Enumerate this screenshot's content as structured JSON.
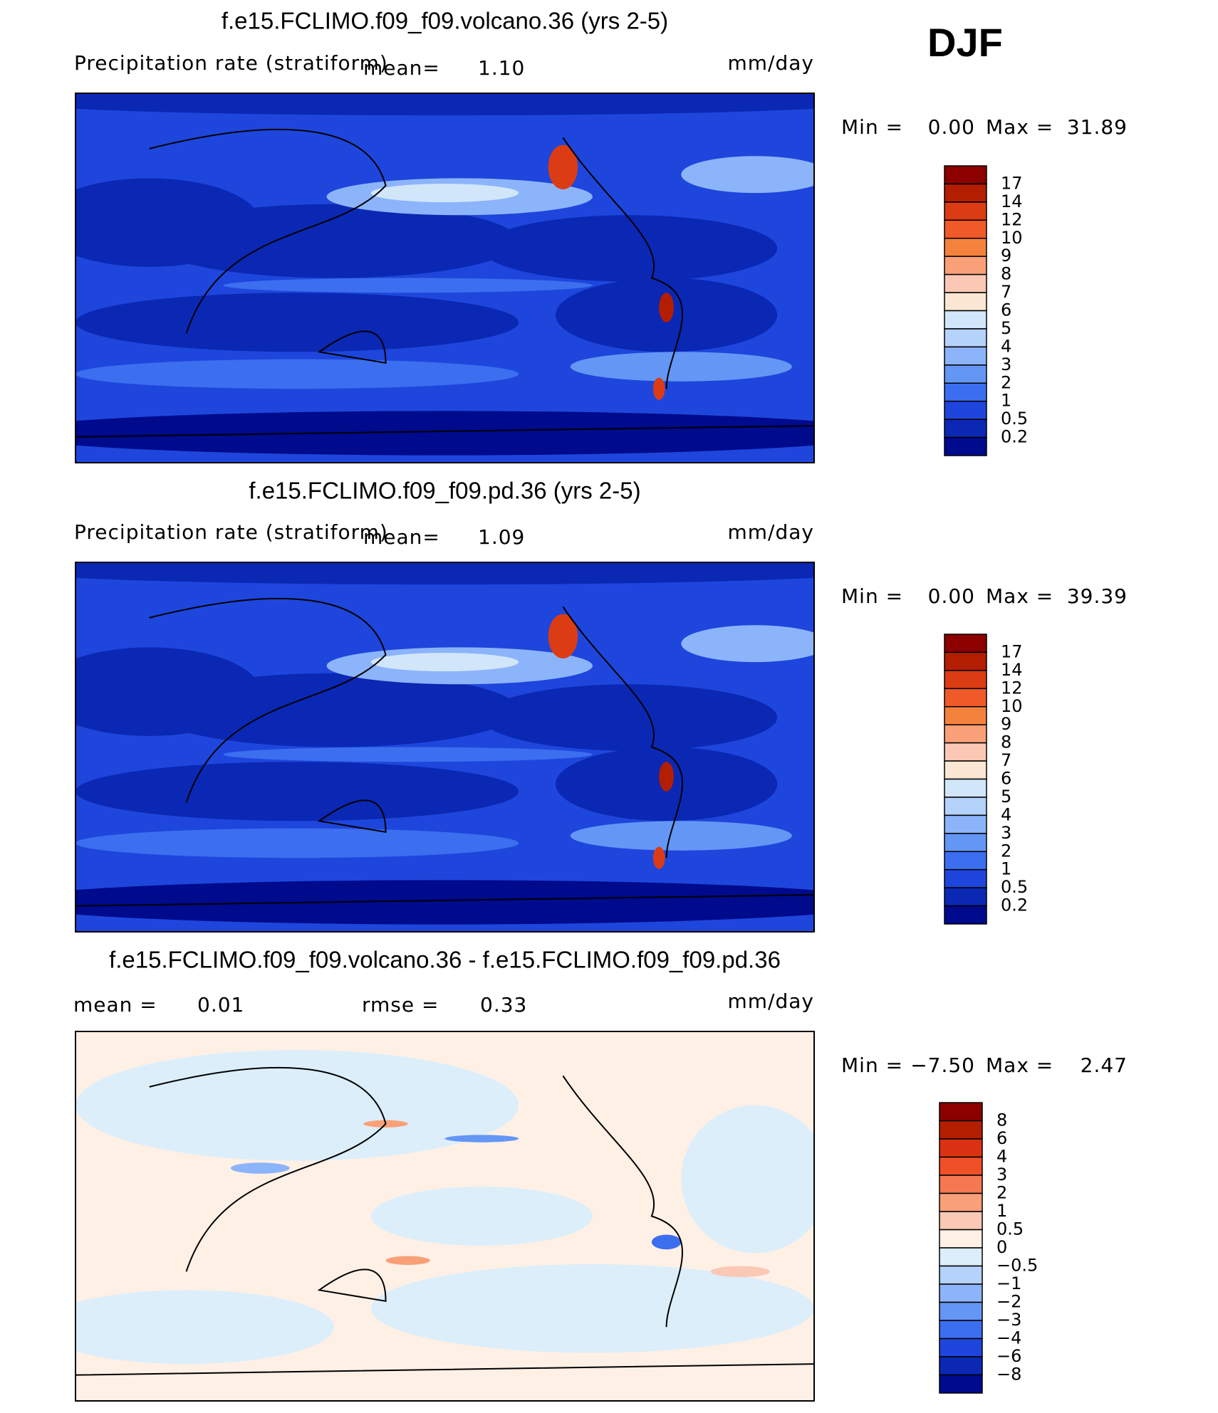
{
  "season": "DJF",
  "panels": [
    {
      "title": "f.e15.FCLIMO.f09_f09.volcano.36 (yrs 2-5)",
      "variable": "Precipitation rate (stratiform)",
      "stats": [
        {
          "label": "mean=",
          "value": "1.10"
        }
      ],
      "units": "mm/day",
      "min_label": "Min =",
      "min": "0.00",
      "max_label": "Max =",
      "max": "31.89",
      "colorbar": {
        "labels": [
          "17",
          "14",
          "12",
          "10",
          "9",
          "8",
          "7",
          "6",
          "5",
          "4",
          "3",
          "2",
          "1",
          "0.5",
          "0.2"
        ],
        "colors": [
          "#8c0000",
          "#b41e00",
          "#dc3c14",
          "#f05a28",
          "#f5823c",
          "#faa078",
          "#fac8b4",
          "#fae6d2",
          "#d2e6fa",
          "#b4d2fa",
          "#8cb4fa",
          "#6496f5",
          "#3c6ef0",
          "#1e46dc",
          "#0a28b4",
          "#000a8c"
        ]
      }
    },
    {
      "title": "f.e15.FCLIMO.f09_f09.pd.36 (yrs 2-5)",
      "variable": "Precipitation rate (stratiform)",
      "stats": [
        {
          "label": "mean=",
          "value": "1.09"
        }
      ],
      "units": "mm/day",
      "min_label": "Min =",
      "min": "0.00",
      "max_label": "Max =",
      "max": "39.39",
      "colorbar": {
        "labels": [
          "17",
          "14",
          "12",
          "10",
          "9",
          "8",
          "7",
          "6",
          "5",
          "4",
          "3",
          "2",
          "1",
          "0.5",
          "0.2"
        ],
        "colors": [
          "#8c0000",
          "#b41e00",
          "#dc3c14",
          "#f05a28",
          "#f5823c",
          "#faa078",
          "#fac8b4",
          "#fae6d2",
          "#d2e6fa",
          "#b4d2fa",
          "#8cb4fa",
          "#6496f5",
          "#3c6ef0",
          "#1e46dc",
          "#0a28b4",
          "#000a8c"
        ]
      }
    },
    {
      "title": "f.e15.FCLIMO.f09_f09.volcano.36 - f.e15.FCLIMO.f09_f09.pd.36",
      "stats": [
        {
          "label": "mean =",
          "value": "0.01"
        },
        {
          "label": "rmse =",
          "value": "0.33"
        }
      ],
      "units": "mm/day",
      "min_label": "Min =",
      "min": "−7.50",
      "max_label": "Max =",
      "max": "2.47",
      "colorbar": {
        "labels": [
          "8",
          "6",
          "4",
          "3",
          "2",
          "1",
          "0.5",
          "0",
          "−0.5",
          "−1",
          "−2",
          "−3",
          "−4",
          "−6",
          "−8"
        ],
        "colors": [
          "#8c0000",
          "#b41e00",
          "#dc3214",
          "#f05028",
          "#f57850",
          "#faa078",
          "#fac8b4",
          "#fff0e6",
          "#dceefa",
          "#b4d2fa",
          "#8cb4fa",
          "#6496f5",
          "#3c6ef0",
          "#1e46dc",
          "#0a28b4",
          "#000a8c"
        ]
      }
    }
  ]
}
